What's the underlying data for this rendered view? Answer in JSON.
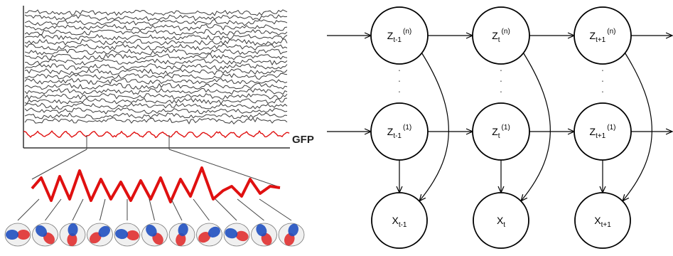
{
  "eeg_panel": {
    "gfp_label": "GFP",
    "trace_color": "#3a3a3a",
    "gfp_color": "#e01010",
    "map_colors": {
      "positive": "#e03030",
      "negative": "#2050c0",
      "neutral": "#f0f0f0"
    },
    "topomap_count": 11
  },
  "hmm_graph": {
    "columns": [
      {
        "id": "t-1",
        "top_node": {
          "base": "Z",
          "sub": "t-1",
          "sup": "(n)"
        },
        "mid_node": {
          "base": "Z",
          "sub": "t-1",
          "sup": "(1)"
        },
        "obs_node": {
          "base": "X",
          "sub": "t-1"
        }
      },
      {
        "id": "t",
        "top_node": {
          "base": "Z",
          "sub": "t",
          "sup": "(n)"
        },
        "mid_node": {
          "base": "Z",
          "sub": "t",
          "sup": "(1)"
        },
        "obs_node": {
          "base": "X",
          "sub": "t"
        }
      },
      {
        "id": "t+1",
        "top_node": {
          "base": "Z",
          "sub": "t+1",
          "sup": "(n)"
        },
        "mid_node": {
          "base": "Z",
          "sub": "t+1",
          "sup": "(1)"
        },
        "obs_node": {
          "base": "X",
          "sub": "t+1"
        }
      }
    ],
    "ellipsis": "·",
    "line_color": "#000000"
  }
}
